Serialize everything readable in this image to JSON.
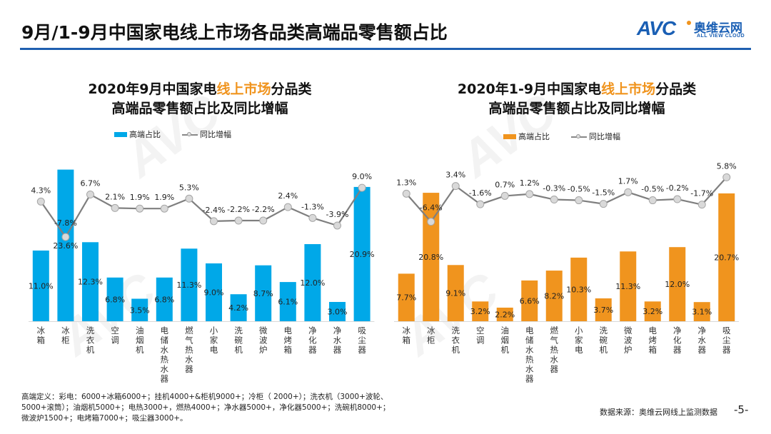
{
  "header": {
    "title": "9月/1-9月中国家电线上市场各品类高端品零售额占比",
    "logo": {
      "mark": "AVC",
      "cn": "奥维云网",
      "en": "ALL VIEW CLOUD"
    }
  },
  "colors": {
    "brand_blue": "#1f5fb0",
    "bar_left": "#00a8e8",
    "bar_right": "#f0941e",
    "line": "#7f7f7f",
    "marker": "#d9d9d9",
    "highlight": "#f0941e"
  },
  "chart_data": [
    {
      "type": "bar+line",
      "title_line1_pre": "2020年9月中国家电",
      "title_line1_hl": "线上市场",
      "title_line1_post": "分品类",
      "title_line2": "高端品零售额占比及同比增幅",
      "legend": {
        "bar": "高端占比",
        "line": "同比增幅"
      },
      "legend_placement": "top-left",
      "categories": [
        "冰箱",
        "冰柜",
        "洗衣机",
        "空调",
        "油烟机",
        "电储水热水器",
        "燃气热水器",
        "小家电",
        "洗碗机",
        "微波炉",
        "电烤箱",
        "净化器",
        "净水器",
        "吸尘器"
      ],
      "series": [
        {
          "name": "高端占比",
          "kind": "bar",
          "values": [
            11.0,
            23.6,
            12.3,
            6.8,
            3.5,
            6.8,
            11.3,
            9.0,
            4.2,
            8.7,
            6.1,
            12.0,
            3.0,
            20.9
          ],
          "labels": [
            "11.0%",
            "23.6%",
            "12.3%",
            "6.8%",
            "3.5%",
            "6.8%",
            "11.3%",
            "9.0%",
            "4.2%",
            "8.7%",
            "6.1%",
            "12.0%",
            "3.0%",
            "20.9%"
          ]
        },
        {
          "name": "同比增幅",
          "kind": "line",
          "values": [
            4.3,
            -7.8,
            6.7,
            2.1,
            1.9,
            1.9,
            5.3,
            -2.4,
            -2.2,
            -2.2,
            2.4,
            -1.3,
            -3.9,
            9.0
          ],
          "labels": [
            "4.3%",
            "-7.8%",
            "6.7%",
            "2.1%",
            "1.9%",
            "1.9%",
            "5.3%",
            "-2.4%",
            "-2.2%",
            "-2.2%",
            "2.4%",
            "-1.3%",
            "-3.9%",
            "9.0%"
          ]
        }
      ],
      "grid": false
    },
    {
      "type": "bar+line",
      "title_line1_pre": "2020年1-9月中国家电",
      "title_line1_hl": "线上市场",
      "title_line1_post": "分品类",
      "title_line2": "高端品零售额占比及同比增幅",
      "legend": {
        "bar": "高端占比",
        "line": "同比增幅"
      },
      "legend_placement": "top-left",
      "categories": [
        "冰箱",
        "冰柜",
        "洗衣机",
        "空调",
        "油烟机",
        "电储水热水器",
        "燃气热水器",
        "小家电",
        "洗碗机",
        "微波炉",
        "电烤箱",
        "净化器",
        "净水器",
        "吸尘器"
      ],
      "series": [
        {
          "name": "高端占比",
          "kind": "bar",
          "values": [
            7.7,
            20.8,
            9.1,
            3.2,
            2.2,
            6.6,
            8.2,
            10.3,
            3.7,
            11.3,
            3.2,
            12.0,
            3.1,
            20.7
          ],
          "labels": [
            "7.7%",
            "20.8%",
            "9.1%",
            "3.2%",
            "2.2%",
            "6.6%",
            "8.2%",
            "10.3%",
            "3.7%",
            "11.3%",
            "3.2%",
            "12.0%",
            "3.1%",
            "20.7%"
          ]
        },
        {
          "name": "同比增幅",
          "kind": "line",
          "values": [
            1.3,
            -6.4,
            3.4,
            -1.6,
            0.7,
            1.2,
            -0.3,
            -0.5,
            -1.5,
            1.7,
            -0.5,
            -0.2,
            -1.7,
            5.8
          ],
          "labels": [
            "1.3%",
            "-6.4%",
            "3.4%",
            "-1.6%",
            "0.7%",
            "1.2%",
            "-0.3%",
            "-0.5%",
            "-1.5%",
            "1.7%",
            "-0.5%",
            "-0.2%",
            "-1.7%",
            "5.8%"
          ]
        }
      ],
      "grid": false
    }
  ],
  "footer": {
    "footnote": "高端定义：彩电：6000+冰箱6000+；挂机4000+&柜机9000+；冷柜（ 2000+）；洗衣机（3000+波轮、5000+滚筒）；油烟机5000+；电热3000+，燃热4000+；净水器5000+，净化器5000+；洗碗机8000+；微波炉1500+；电烤箱7000+；吸尘器3000+。",
    "source": "数据来源：奥维云网线上监测数据",
    "page_number": "-5-"
  },
  "watermark": "AVC"
}
